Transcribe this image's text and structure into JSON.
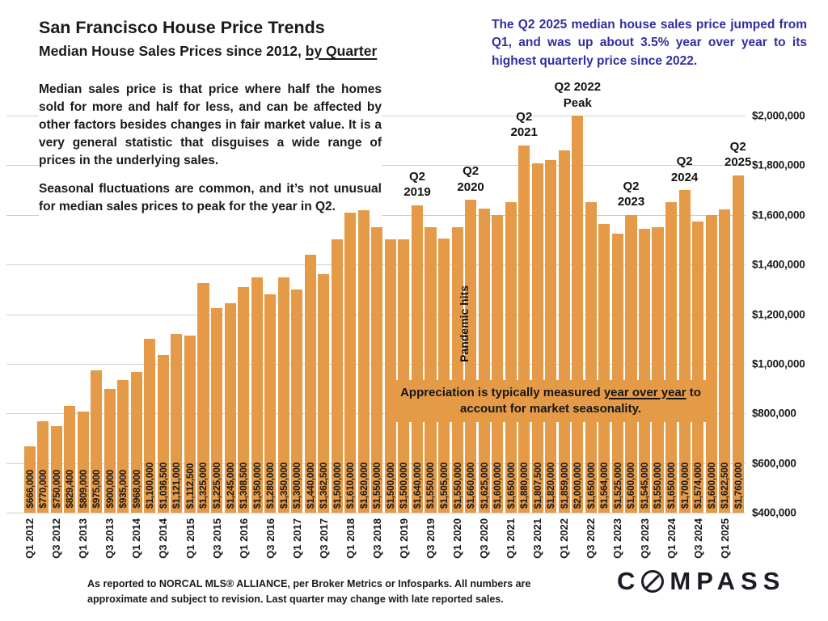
{
  "colors": {
    "bar": "#E49A47",
    "grid": "#CFCFCF",
    "callout": "#312F9F"
  },
  "header": {
    "title": "San Francisco House Price Trends",
    "subtitle_prefix": "Median House Sales Prices since 2012, ",
    "subtitle_underlined": "by Quarter"
  },
  "callout": {
    "text": "The Q2 2025 median house sales price jumped from Q1, and was up about 3.5% year over year to its highest quarterly price since 2022."
  },
  "paragraphs": [
    "Median sales price is that price where half the homes sold for more and half for less, and can be affected by other factors besides changes in fair market value. It is a very general statistic that disguises a wide range of prices in the underlying sales.",
    "Seasonal fluctuations are common, and it’s not unusual for median sales prices to peak for the year in Q2."
  ],
  "chart_data": {
    "type": "bar",
    "title": "San Francisco Median House Sales Prices by Quarter since 2012",
    "categories": [
      "Q1 2012",
      "Q2 2012",
      "Q3 2012",
      "Q4 2012",
      "Q1 2013",
      "Q2 2013",
      "Q3 2013",
      "Q4 2013",
      "Q1 2014",
      "Q2 2014",
      "Q3 2014",
      "Q4 2014",
      "Q1 2015",
      "Q2 2015",
      "Q3 2015",
      "Q4 2015",
      "Q1 2016",
      "Q2 2016",
      "Q3 2016",
      "Q4 2016",
      "Q1 2017",
      "Q2 2017",
      "Q3 2017",
      "Q4 2017",
      "Q1 2018",
      "Q2 2018",
      "Q3 2018",
      "Q4 2018",
      "Q1 2019",
      "Q2 2019",
      "Q3 2019",
      "Q4 2019",
      "Q1 2020",
      "Q2 2020",
      "Q3 2020",
      "Q4 2020",
      "Q1 2021",
      "Q2 2021",
      "Q3 2021",
      "Q4 2021",
      "Q1 2022",
      "Q2 2022",
      "Q3 2022",
      "Q4 2022",
      "Q1 2023",
      "Q2 2023",
      "Q3 2023",
      "Q4 2023",
      "Q1 2024",
      "Q2 2024",
      "Q3 2024",
      "Q4 2024",
      "Q1 2025",
      "Q2 2025"
    ],
    "values": [
      666000,
      770000,
      750000,
      829400,
      809000,
      975000,
      900000,
      935000,
      968000,
      1100000,
      1036500,
      1121000,
      1112500,
      1325000,
      1225000,
      1245000,
      1308500,
      1350000,
      1280000,
      1350000,
      1300000,
      1440000,
      1362500,
      1500000,
      1610000,
      1620000,
      1550000,
      1500000,
      1500000,
      1640000,
      1550000,
      1505000,
      1550000,
      1660000,
      1625000,
      1600000,
      1650000,
      1880000,
      1807500,
      1820000,
      1859000,
      2000000,
      1650000,
      1564000,
      1525000,
      1600000,
      1545000,
      1550000,
      1650000,
      1700000,
      1574000,
      1600000,
      1622500,
      1760000
    ],
    "bar_labels": [
      "$666,000",
      "$770,000",
      "$750,000",
      "$829,400",
      "$809,000",
      "$975,000",
      "$900,000",
      "$935,000",
      "$968,000",
      "$1,100,000",
      "$1,036,500",
      "$1,121,000",
      "$1,112,500",
      "$1,325,000",
      "$1,225,000",
      "$1,245,000",
      "$1,308,500",
      "$1,350,000",
      "$1,280,000",
      "$1,350,000",
      "$1,300,000",
      "$1,440,000",
      "$1,362,500",
      "$1,500,000",
      "$1,610,000",
      "$1,620,000",
      "$1,550,000",
      "$1,500,000",
      "$1,500,000",
      "$1,640,000",
      "$1,550,000",
      "$1,505,000",
      "$1,550,000",
      "$1,660,000",
      "$1,625,000",
      "$1,600,000",
      "$1,650,000",
      "$1,880,000",
      "$1,807,500",
      "$1,820,000",
      "$1,859,000",
      "$2,000,000",
      "$1,650,000",
      "$1,564,000",
      "$1,525,000",
      "$1,600,000",
      "$1,545,000",
      "$1,550,000",
      "$1,650,000",
      "$1,700,000",
      "$1,574,000",
      "$1,600,000",
      "$1,622,500",
      "$1,760,000"
    ],
    "ylim": [
      400000,
      2000000
    ],
    "y_ticks": [
      {
        "value": 2000000,
        "label": "$2,000,000"
      },
      {
        "value": 1800000,
        "label": "$1,800,000"
      },
      {
        "value": 1600000,
        "label": "$1,600,000"
      },
      {
        "value": 1400000,
        "label": "$1,400,000"
      },
      {
        "value": 1200000,
        "label": "$1,200,000"
      },
      {
        "value": 1000000,
        "label": "$1,000,000"
      },
      {
        "value": 800000,
        "label": "$800,000"
      },
      {
        "value": 600000,
        "label": "$600,000"
      },
      {
        "value": 400000,
        "label": "$400,000"
      }
    ],
    "x_tick_every": 2,
    "grid": "horizontal",
    "legend": "none",
    "annotations": [
      {
        "index": 29,
        "lines": [
          "Q2",
          "2019"
        ]
      },
      {
        "index": 33,
        "lines": [
          "Q2",
          "2020"
        ]
      },
      {
        "index": 37,
        "lines": [
          "Q2",
          "2021"
        ]
      },
      {
        "index": 41,
        "lines": [
          "Q2 2022",
          "Peak"
        ]
      },
      {
        "index": 45,
        "lines": [
          "Q2",
          "2023"
        ]
      },
      {
        "index": 49,
        "lines": [
          "Q2",
          "2024"
        ]
      },
      {
        "index": 53,
        "lines": [
          "Q2",
          "2025"
        ]
      }
    ],
    "vertical_annotation": {
      "index": 33,
      "text": "Pandemic hits"
    },
    "overlay_note": {
      "prefix": "Appreciation is typically measured ",
      "underlined": "year over year",
      "suffix": " to account for market seasonality."
    }
  },
  "footnote": "As reported to NORCAL MLS® ALLIANCE, per Broker Metrics or Infosparks. All numbers are approximate and subject to revision. Last quarter may change with late reported sales.",
  "logo": {
    "prefix": "C",
    "suffix": "MPASS"
  }
}
